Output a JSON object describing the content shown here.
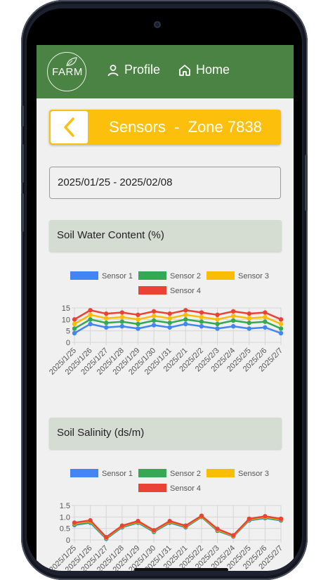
{
  "header": {
    "logo_text": "FARM",
    "nav": [
      {
        "label": "Profile",
        "icon": "person-icon"
      },
      {
        "label": "Home",
        "icon": "home-icon"
      }
    ],
    "bar_color": "#4a8343"
  },
  "page": {
    "title": "Sensors  -  Zone 7838",
    "accent_color": "#fbbf0c",
    "back_icon": "chevron-left-icon",
    "date_range": "2025/01/25 - 2025/02/08"
  },
  "sections": [
    {
      "title": "Soil Water Content (%)"
    },
    {
      "title": "Soil Salinity (ds/m)"
    }
  ],
  "chart_data": [
    {
      "type": "line",
      "title": "Soil Water Content (%)",
      "x": [
        "2025/1/25",
        "2025/1/26",
        "2025/1/27",
        "2025/1/28",
        "2025/1/29",
        "2025/1/30",
        "2025/1/31",
        "2025/2/1",
        "2025/2/2",
        "2025/2/3",
        "2025/2/4",
        "2025/2/5",
        "2025/2/6",
        "2025/2/7"
      ],
      "ylim": [
        0,
        15
      ],
      "yticks": [
        "0",
        "5",
        "10",
        "15"
      ],
      "grid": true,
      "legend": "top",
      "series": [
        {
          "name": "Sensor 1",
          "color": "#4285f4",
          "values": [
            4,
            8,
            6.5,
            7,
            6,
            7.5,
            6.5,
            8,
            7,
            6,
            7,
            6,
            6.5,
            4
          ]
        },
        {
          "name": "Sensor 2",
          "color": "#34a853",
          "values": [
            6,
            10,
            8.5,
            9,
            8,
            9.5,
            8.5,
            10,
            9,
            8,
            9.5,
            8.5,
            9,
            6
          ]
        },
        {
          "name": "Sensor 3",
          "color": "#fbbc04",
          "values": [
            8,
            12,
            10.5,
            11,
            10,
            11.5,
            10.5,
            12,
            11,
            10,
            11.5,
            10.5,
            11,
            8
          ]
        },
        {
          "name": "Sensor 4",
          "color": "#ea4335",
          "values": [
            10,
            14,
            12.5,
            13,
            12,
            13.5,
            12.5,
            14,
            13,
            12,
            13.5,
            12.5,
            13,
            10
          ]
        }
      ]
    },
    {
      "type": "line",
      "title": "Soil Salinity (ds/m)",
      "x": [
        "2025/1/25",
        "2025/1/26",
        "2025/1/27",
        "2025/1/28",
        "2025/1/29",
        "2025/1/30",
        "2025/1/31",
        "2025/2/1",
        "2025/2/2",
        "2025/2/3",
        "2025/2/4",
        "2025/2/5",
        "2025/2/6",
        "2025/2/7"
      ],
      "ylim": [
        0,
        1.5
      ],
      "yticks": [
        "0",
        "0.5",
        "1.0",
        "1.5"
      ],
      "grid": true,
      "legend": "top",
      "series": [
        {
          "name": "Sensor 1",
          "color": "#4285f4",
          "values": [
            0.65,
            0.75,
            0.05,
            0.55,
            0.75,
            0.35,
            0.75,
            0.55,
            1.0,
            0.4,
            0.15,
            0.85,
            0.95,
            0.85
          ]
        },
        {
          "name": "Sensor 2",
          "color": "#34a853",
          "values": [
            0.68,
            0.78,
            0.07,
            0.57,
            0.77,
            0.37,
            0.77,
            0.57,
            1.01,
            0.42,
            0.16,
            0.87,
            0.97,
            0.87
          ]
        },
        {
          "name": "Sensor 3",
          "color": "#fbbc04",
          "values": [
            0.72,
            0.82,
            0.1,
            0.6,
            0.8,
            0.4,
            0.8,
            0.6,
            1.03,
            0.45,
            0.18,
            0.9,
            1.0,
            0.9
          ]
        },
        {
          "name": "Sensor 4",
          "color": "#ea4335",
          "values": [
            0.75,
            0.85,
            0.12,
            0.62,
            0.82,
            0.42,
            0.82,
            0.62,
            1.05,
            0.48,
            0.2,
            0.92,
            1.03,
            0.92
          ]
        }
      ]
    }
  ]
}
